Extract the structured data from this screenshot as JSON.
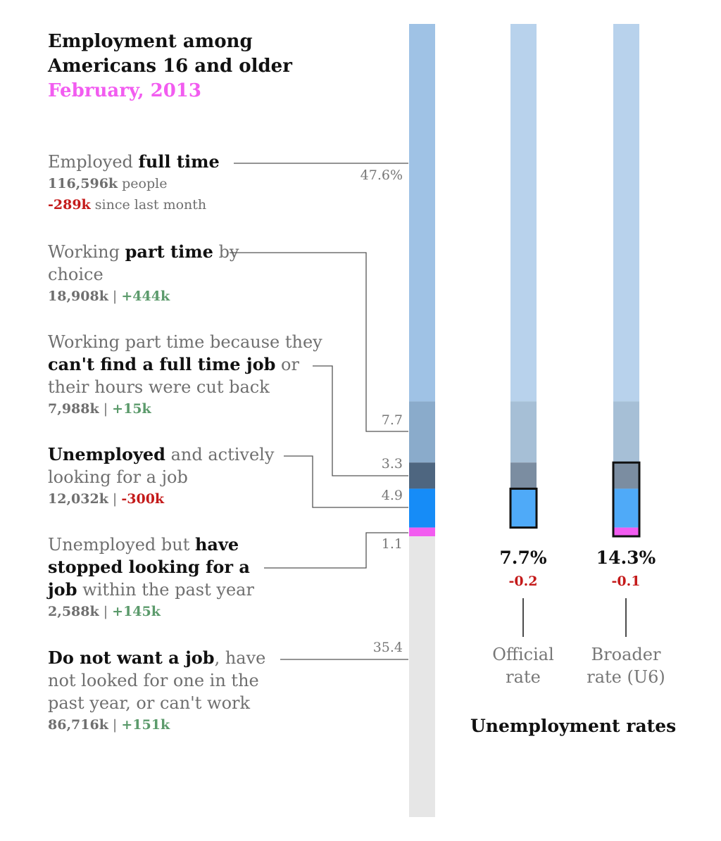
{
  "title": {
    "line1": "Employment among",
    "line2": "Americans 16 and older",
    "subtitle": "February, 2013"
  },
  "categories": [
    {
      "pre": "Employed ",
      "bold": "full time",
      "post": "",
      "stat_count": "116,596k",
      "stat_count_suffix": " people",
      "change": "-289k",
      "change_suffix": " since last month",
      "change_type": "neg",
      "pct": "47.6%"
    },
    {
      "pre": "Working ",
      "bold": "part time",
      "post": " by choice",
      "stat_count": "18,908k",
      "change": "+444k",
      "change_type": "pos",
      "pct": "7.7"
    },
    {
      "pre": "Working part time because they ",
      "bold": "can't find a full time job",
      "post": " or their hours were cut back",
      "stat_count": "7,988k",
      "change": "+15k",
      "change_type": "pos",
      "pct": "3.3"
    },
    {
      "pre": "",
      "bold": "Unemployed",
      "post": " and actively looking for a job",
      "stat_count": "12,032k",
      "change": "-300k",
      "change_type": "neg",
      "pct": "4.9"
    },
    {
      "pre": "Unemployed but ",
      "bold": "have stopped looking for a job",
      "post": " within the past year",
      "stat_count": "2,588k",
      "change": "+145k",
      "change_type": "pos",
      "pct": "1.1"
    },
    {
      "pre": "",
      "bold": "Do not want a job",
      "post": ", have not looked for one in the past year, or can't work",
      "stat_count": "86,716k",
      "change": "+151k",
      "change_type": "pos",
      "pct": "35.4"
    }
  ],
  "rates": {
    "title": "Unemployment rates",
    "official": {
      "value": "7.7%",
      "change": "-0.2",
      "label1": "Official",
      "label2": "rate"
    },
    "broader": {
      "value": "14.3%",
      "change": "-0.1",
      "label1": "Broader",
      "label2": "rate (U6)"
    }
  },
  "chart_data": {
    "type": "bar",
    "stacked": true,
    "orientation": "vertical",
    "title": "Employment among Americans 16 and older",
    "subtitle": "February, 2013",
    "unit": "percent of population 16 and older",
    "categories": [
      "Employed full time",
      "Working part time by choice",
      "Working part time because they can't find a full time job or their hours were cut back",
      "Unemployed and actively looking for a job",
      "Unemployed but have stopped looking for a job within the past year",
      "Do not want a job, have not looked for one in the past year, or can't work"
    ],
    "values": [
      47.6,
      7.7,
      3.3,
      4.9,
      1.1,
      35.4
    ],
    "counts_thousands": [
      116596,
      18908,
      7988,
      12032,
      2588,
      86716
    ],
    "change_since_last_month_thousands": [
      -289,
      444,
      15,
      -300,
      145,
      151
    ],
    "colors": [
      "#9fc2e5",
      "#8aabcb",
      "#4e6680",
      "#168cf7",
      "#f25cf0",
      "#e6e6e6"
    ],
    "rates": [
      {
        "name": "Official rate",
        "value": 7.7,
        "change": -0.2,
        "includes": [
          3
        ]
      },
      {
        "name": "Broader rate (U6)",
        "value": 14.3,
        "change": -0.1,
        "includes": [
          2,
          3,
          4
        ]
      }
    ],
    "rate_bar_colors": [
      "#b8d2ec",
      "#a6bfd6",
      "#7b8da1",
      "#4faaf8",
      "#f25cf0"
    ]
  }
}
